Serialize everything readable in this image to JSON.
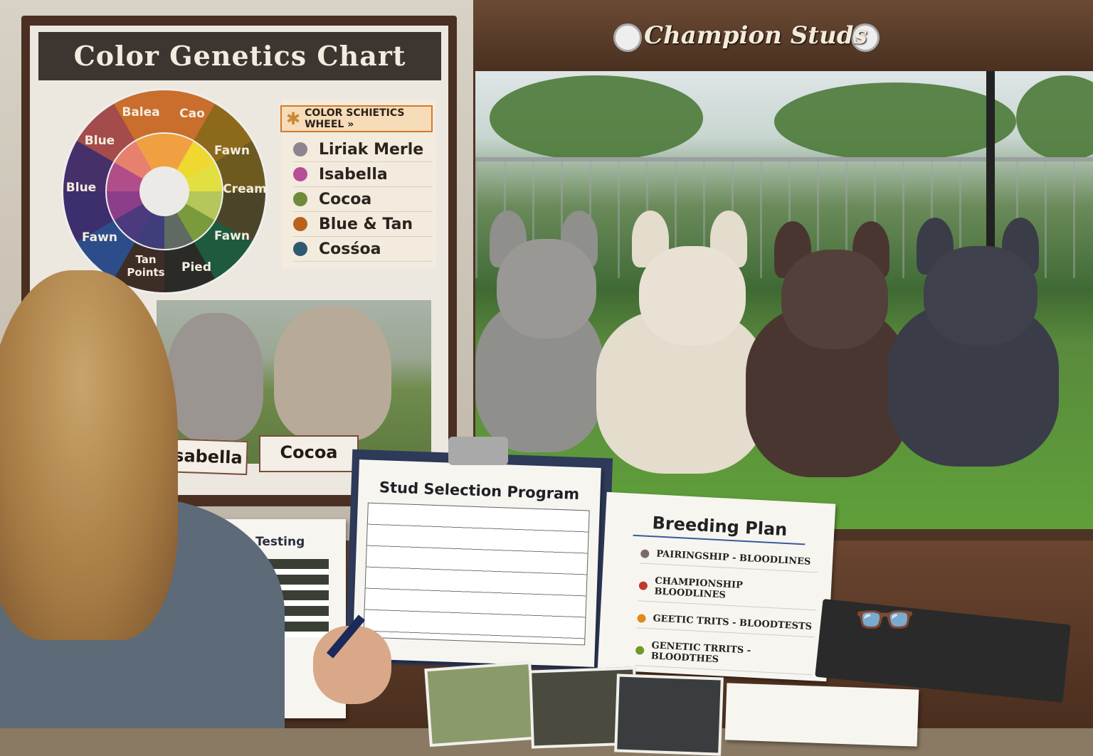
{
  "poster": {
    "title": "Color Genetics Chart",
    "wheel_labels": [
      "Balea",
      "Cao",
      "Fawn",
      "Cream",
      "Fawn",
      "Pied",
      "Tan Points",
      "Fawn",
      "Blue",
      "Blue"
    ],
    "legend_title": "COLOR SCHIETICS WHEEL »",
    "legend_items": [
      {
        "label": "Liriak Merle",
        "color": "#8d8490"
      },
      {
        "label": "Isabella",
        "color": "#b64f95"
      },
      {
        "label": "Cocoa",
        "color": "#6f8a3a"
      },
      {
        "label": "Blue & Tan",
        "color": "#b8621c"
      },
      {
        "label": "Cosśoa",
        "color": "#2d5a70"
      }
    ],
    "photo_labels": [
      "Isabella",
      "Cocoa"
    ]
  },
  "sign": {
    "title": "Champion Studs"
  },
  "dogs": [
    {
      "coat": "merle",
      "color": "#8f8f8c"
    },
    {
      "coat": "cream",
      "color": "#e4dccd"
    },
    {
      "coat": "chocolate",
      "color": "#4a3630"
    },
    {
      "coat": "blue-and-tan",
      "color": "#3a3d48"
    }
  ],
  "genetic_testing": {
    "title": "Genetic Testing"
  },
  "stud_selection": {
    "title": "Stud Selection Program"
  },
  "breeding_plan": {
    "title": "Breeding Plan",
    "items": [
      {
        "label": "PAIRINGSHIP - BLOODLINES",
        "color": "#7a6a70"
      },
      {
        "label": "CHAMPIONSHIP BLOODLINES",
        "color": "#c0392b"
      },
      {
        "label": "GEETIC TRITS - BLOODTESTS",
        "color": "#e08a1a"
      },
      {
        "label": "GENETIC TRRITS - BLOODTHES",
        "color": "#6f9a2a"
      }
    ]
  }
}
